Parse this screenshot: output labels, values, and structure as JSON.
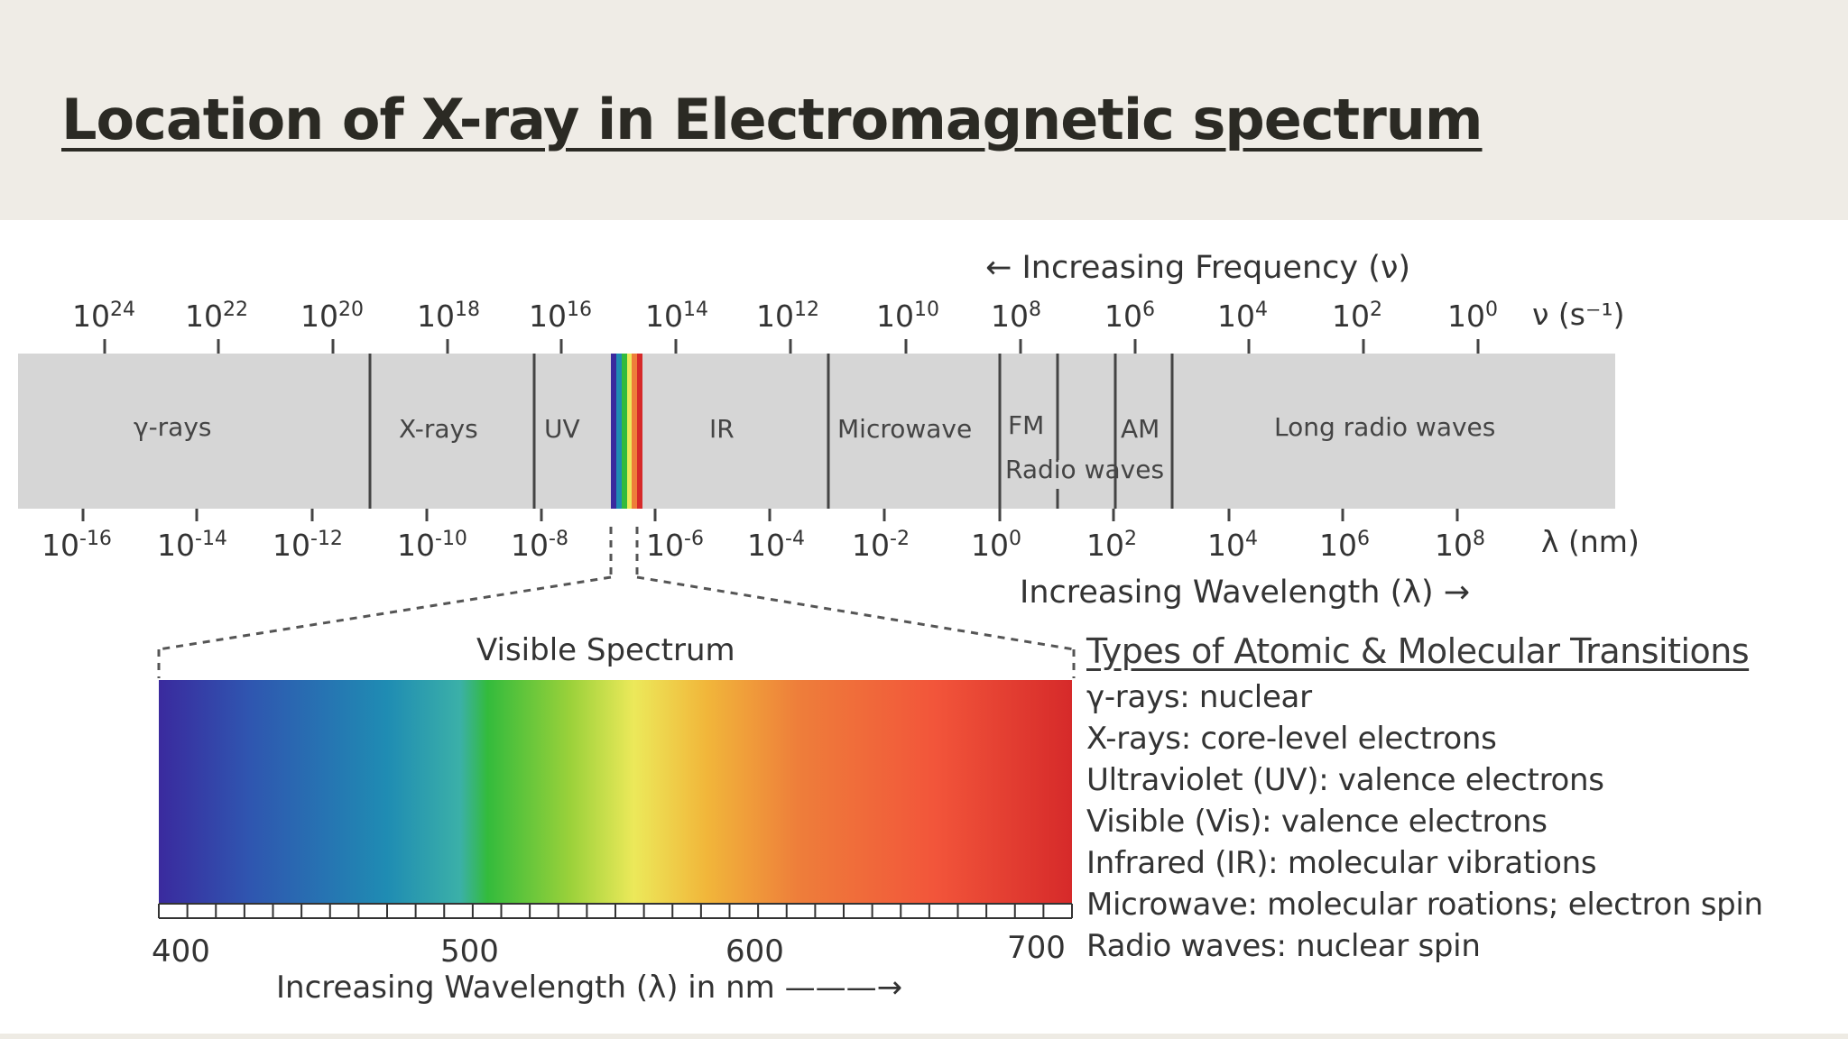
{
  "title": "Location of X-ray in Electromagnetic spectrum",
  "frequency_axis": {
    "label": "← Increasing Frequency (ν)",
    "unit_label": "ν (s⁻¹)",
    "ticks": [
      "24",
      "22",
      "20",
      "18",
      "16",
      "14",
      "12",
      "10",
      "8",
      "6",
      "4",
      "2",
      "0"
    ]
  },
  "wavelength_axis": {
    "label": "Increasing Wavelength (λ) →",
    "unit_label": "λ (nm)",
    "ticks": [
      "-16",
      "-14",
      "-12",
      "-10",
      "-8",
      "-6",
      "-4",
      "-2",
      "0",
      "2",
      "4",
      "6",
      "8"
    ]
  },
  "regions": [
    "γ-rays",
    "X-rays",
    "UV",
    "IR",
    "Microwave",
    "FM",
    "AM",
    "Radio waves",
    "Long radio waves"
  ],
  "visible": {
    "title": "Visible Spectrum",
    "ticks": [
      "400",
      "500",
      "600",
      "700"
    ],
    "axis_label": "Increasing Wavelength (λ) in nm ———→"
  },
  "transitions": {
    "title": "Types of  Atomic & Molecular Transitions",
    "items": [
      "γ-rays: nuclear",
      "X-rays: core-level electrons",
      "Ultraviolet (UV): valence electrons",
      "Visible (Vis): valence electrons",
      "Infrared (IR): molecular vibrations",
      "Microwave: molecular roations; electron spin",
      "Radio waves: nuclear spin"
    ]
  },
  "colors": {
    "band": "#d6d6d6",
    "divider": "#444444",
    "header_bg": "#efece6"
  }
}
